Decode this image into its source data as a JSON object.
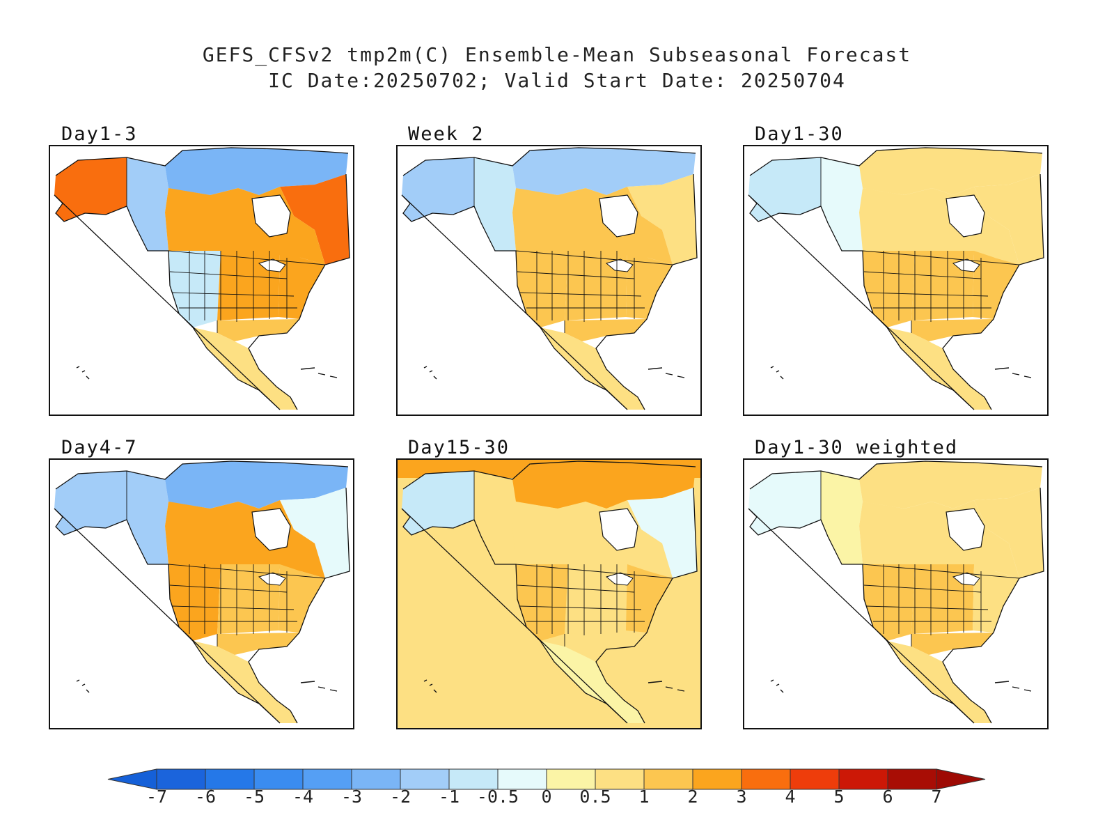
{
  "figure": {
    "title_line1": "GEFS_CFSv2 tmp2m(C) Ensemble-Mean Subseasonal Forecast",
    "title_line2": "IC Date:20250702; Valid Start Date: 20250704"
  },
  "panels": [
    {
      "title": "Day1-3",
      "regions": {
        "alaska": 3.5,
        "canada_nw": -2.0,
        "arctic": -3.0,
        "hudson_east": 3.0,
        "canada_central": 2.0,
        "us_west": -1.0,
        "us_central": 2.0,
        "us_east": 2.0,
        "us_south": 1.0,
        "mexico": 0.5
      }
    },
    {
      "title": "Week 2",
      "regions": {
        "alaska": -1.5,
        "canada_nw": -1.0,
        "arctic": -2.0,
        "hudson_east": 0.5,
        "canada_central": 1.0,
        "us_west": 1.5,
        "us_central": 1.5,
        "us_east": 1.0,
        "us_south": 1.0,
        "mexico": 0.5
      }
    },
    {
      "title": "Day1-30",
      "regions": {
        "alaska": -1.0,
        "canada_nw": -0.5,
        "arctic": 0.5,
        "hudson_east": 0.5,
        "canada_central": 0.5,
        "us_west": 1.0,
        "us_central": 1.0,
        "us_east": 1.0,
        "us_south": 1.0,
        "mexico": 0.5
      }
    },
    {
      "title": "Day4-7",
      "regions": {
        "alaska": -2.0,
        "canada_nw": -1.5,
        "arctic": -2.5,
        "hudson_east": -0.5,
        "canada_central": 2.0,
        "us_west": 2.5,
        "us_central": 1.0,
        "us_east": 1.0,
        "us_south": 1.0,
        "mexico": 0.5
      }
    },
    {
      "title": "Day15-30",
      "regions": {
        "alaska": -1.0,
        "canada_nw": 0.5,
        "arctic": 2.0,
        "hudson_east": -0.5,
        "canada_central": 0.5,
        "us_west": 1.0,
        "us_central": 0.5,
        "us_east": 1.0,
        "us_south": 0.5,
        "mexico": 0.3,
        "pacific": 0.8,
        "atlantic": 0.8
      }
    },
    {
      "title": "Day1-30 weighted",
      "regions": {
        "alaska": -0.5,
        "canada_nw": 0.3,
        "arctic": 0.5,
        "hudson_east": 0.5,
        "canada_central": 0.5,
        "us_west": 1.0,
        "us_central": 1.0,
        "us_east": 0.5,
        "us_south": 1.0,
        "mexico": 0.5
      }
    }
  ],
  "colorbar": {
    "labels": [
      "-7",
      "-6",
      "-5",
      "-4",
      "-3",
      "-2",
      "-1",
      "-0.5",
      "0",
      "0.5",
      "1",
      "2",
      "3",
      "4",
      "5",
      "6",
      "7"
    ],
    "colors": [
      "#1b64dc",
      "#2578e8",
      "#3a8cf0",
      "#559ff4",
      "#7ab5f6",
      "#a2cdf8",
      "#c6e9f8",
      "#e6fafb",
      "#fbf4a6",
      "#fde083",
      "#fcc650",
      "#fba51e",
      "#f96e0e",
      "#ee3d0b",
      "#cc1806",
      "#a80d05"
    ],
    "below_color": "#1560d8",
    "above_color": "#9e0a04"
  }
}
